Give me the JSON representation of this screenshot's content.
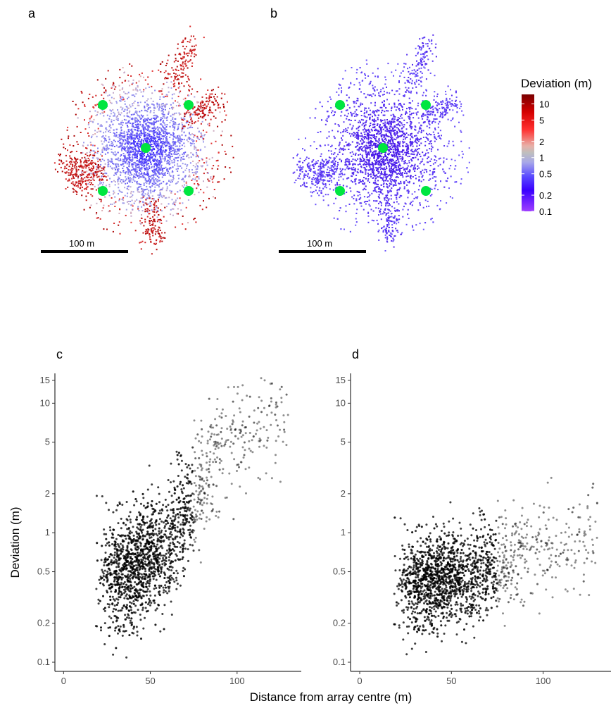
{
  "panels": {
    "a": {
      "letter": "a",
      "scale_label": "100 m"
    },
    "b": {
      "letter": "b",
      "scale_label": "100 m"
    },
    "c": {
      "letter": "c"
    },
    "d": {
      "letter": "d"
    }
  },
  "legend": {
    "title": "Deviation (m)",
    "breaks": [
      "10",
      "5",
      "2",
      "1",
      "0.5",
      "0.2",
      "0.1"
    ],
    "break_values": [
      10,
      5,
      2,
      1,
      0.5,
      0.2,
      0.1
    ],
    "range": [
      0.1,
      15
    ],
    "colors": {
      "high": "#8b0000",
      "upper": "#ff0000",
      "mid": "#bebebe",
      "lower": "#3a00ff",
      "low": "#9b30ff"
    }
  },
  "receiver_color": "#00e640",
  "chart_data": [
    {
      "panel": "a",
      "type": "scatter",
      "description_kind": "map",
      "receivers": [
        [
          -50,
          50
        ],
        [
          50,
          50
        ],
        [
          0,
          0
        ],
        [
          -50,
          -50
        ],
        [
          50,
          -50
        ]
      ],
      "scale_bar_m": 100
    },
    {
      "panel": "b",
      "type": "scatter",
      "description_kind": "map",
      "receivers": [
        [
          -50,
          50
        ],
        [
          50,
          50
        ],
        [
          0,
          0
        ],
        [
          -50,
          -50
        ],
        [
          50,
          -50
        ]
      ],
      "scale_bar_m": 100
    },
    {
      "panel": "c",
      "type": "scatter",
      "xlabel": "Distance from array centre (m)",
      "ylabel": "Deviation (m)",
      "xlim": [
        -5,
        137
      ],
      "ylim": [
        0.085,
        17
      ],
      "y_scale": "log",
      "xticks": [
        0,
        50,
        100
      ],
      "yticks": [
        0.1,
        0.2,
        0.5,
        1,
        2,
        5,
        10,
        15
      ],
      "ytick_labels": [
        "0.1",
        "0.2",
        "0.5",
        "1",
        "2",
        "5",
        "10",
        "15"
      ],
      "grid": false,
      "point_color": "#000000",
      "density_profile": [
        {
          "x": 5,
          "median": 0.5
        },
        {
          "x": 20,
          "median": 0.45
        },
        {
          "x": 40,
          "median": 0.5
        },
        {
          "x": 55,
          "median": 0.7
        },
        {
          "x": 70,
          "median": 1.3
        },
        {
          "x": 80,
          "median": 2.5
        },
        {
          "x": 90,
          "median": 4
        },
        {
          "x": 105,
          "median": 6
        },
        {
          "x": 120,
          "median": 9
        }
      ]
    },
    {
      "panel": "d",
      "type": "scatter",
      "xlabel": "",
      "ylabel": "",
      "xlim": [
        -5,
        137
      ],
      "ylim": [
        0.085,
        17
      ],
      "y_scale": "log",
      "xticks": [
        0,
        50,
        100
      ],
      "yticks": [
        0.1,
        0.2,
        0.5,
        1,
        2,
        5,
        10,
        15
      ],
      "ytick_labels": [
        "0.1",
        "0.2",
        "0.5",
        "1",
        "2",
        "5",
        "10",
        "15"
      ],
      "grid": false,
      "point_color": "#000000",
      "density_profile": [
        {
          "x": 5,
          "median": 0.4
        },
        {
          "x": 25,
          "median": 0.4
        },
        {
          "x": 45,
          "median": 0.42
        },
        {
          "x": 65,
          "median": 0.5
        },
        {
          "x": 80,
          "median": 0.6
        },
        {
          "x": 95,
          "median": 0.7
        },
        {
          "x": 130,
          "median": 1.0
        }
      ]
    }
  ]
}
